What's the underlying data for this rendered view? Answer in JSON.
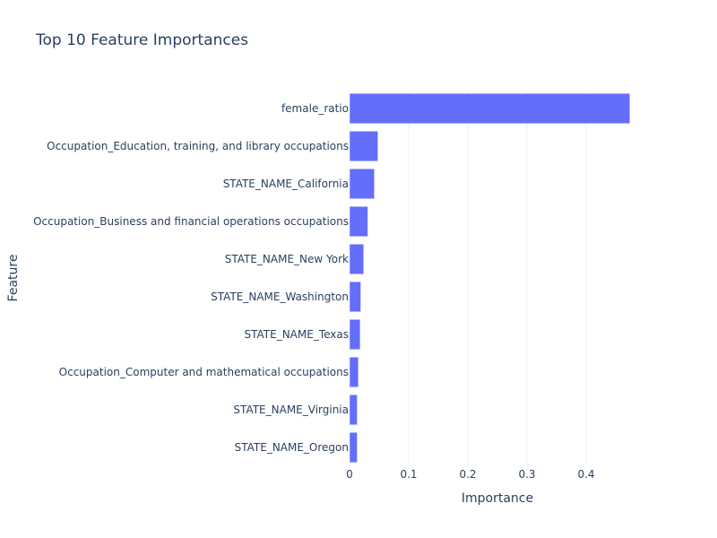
{
  "chart_data": {
    "type": "bar",
    "orientation": "horizontal",
    "title": "Top 10 Feature Importances",
    "xlabel": "Importance",
    "ylabel": "Feature",
    "categories": [
      "female_ratio",
      "Occupation_Education, training, and library occupations",
      "STATE_NAME_California",
      "Occupation_Business and financial operations occupations",
      "STATE_NAME_New York",
      "STATE_NAME_Washington",
      "STATE_NAME_Texas",
      "Occupation_Computer and mathematical occupations",
      "STATE_NAME_Virginia",
      "STATE_NAME_Oregon"
    ],
    "values": [
      0.474,
      0.048,
      0.042,
      0.031,
      0.024,
      0.019,
      0.018,
      0.015,
      0.013,
      0.013
    ],
    "xlim": [
      0,
      0.5
    ],
    "xticks": [
      0,
      0.1,
      0.2,
      0.3,
      0.4
    ],
    "xtick_labels": [
      "0",
      "0.1",
      "0.2",
      "0.3",
      "0.4"
    ],
    "grid": true,
    "legend": "none",
    "colors": {
      "bar": "#636efa",
      "text": "#2a3f5f",
      "grid": "#ebf0f8"
    }
  }
}
